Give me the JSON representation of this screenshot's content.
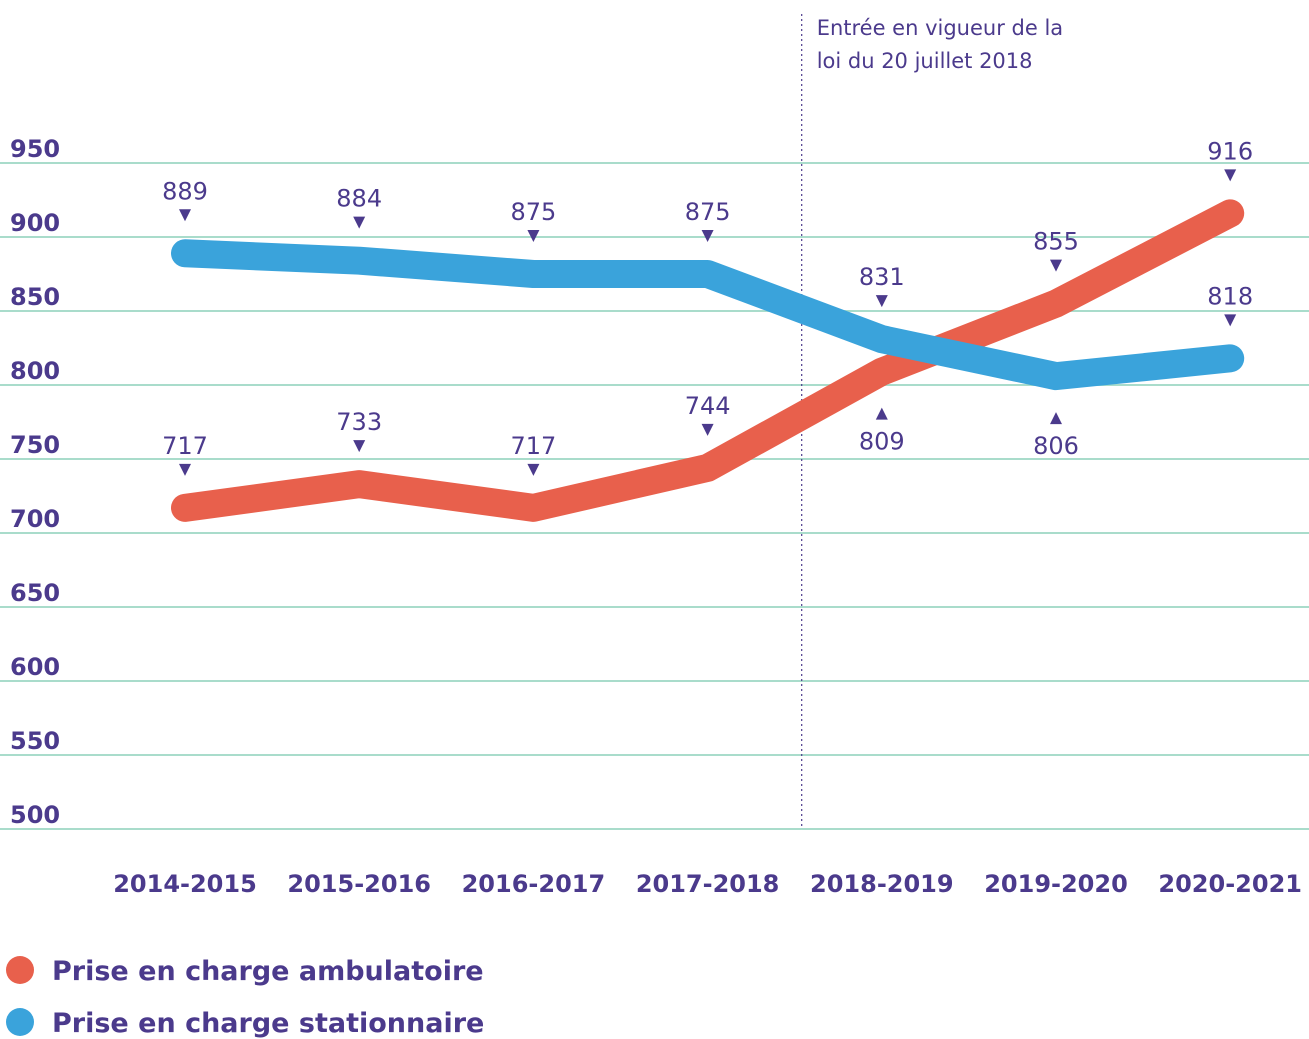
{
  "chart_data": {
    "type": "line",
    "categories": [
      "2014-2015",
      "2015-2016",
      "2016-2017",
      "2017-2018",
      "2018-2019",
      "2019-2020",
      "2020-2021"
    ],
    "series": [
      {
        "name": "Prise en charge ambulatoire",
        "color": "#e8604c",
        "values": [
          717,
          733,
          717,
          744,
          809,
          855,
          916
        ]
      },
      {
        "name": "Prise en charge stationnaire",
        "color": "#3aa3db",
        "values": [
          889,
          884,
          875,
          875,
          831,
          806,
          818
        ]
      }
    ],
    "ylim": [
      500,
      950
    ],
    "yticks": [
      500,
      550,
      600,
      650,
      700,
      750,
      800,
      850,
      900,
      950
    ],
    "grid": true,
    "annotation": {
      "lines": [
        "Entrée en vigueur de la",
        "loi du 20 juillet 2018"
      ],
      "between": [
        "2017-2018",
        "2018-2019"
      ]
    },
    "legend": "bottom-left"
  }
}
